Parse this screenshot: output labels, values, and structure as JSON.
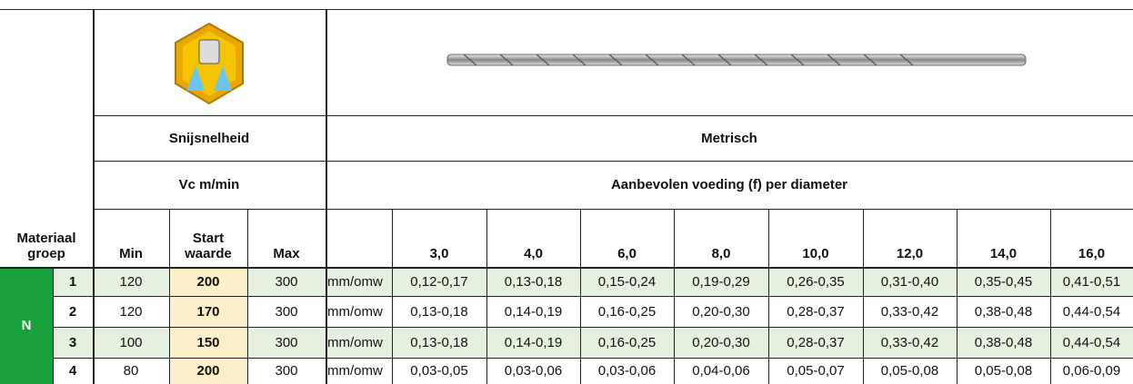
{
  "header": {
    "speed_title": "Snijsnelheid",
    "speed_unit": "Vc m/min",
    "metric": "Metrisch",
    "feed": "Aanbevolen voeding (f) per diameter"
  },
  "columns": {
    "material": "Materiaal groep",
    "min": "Min",
    "start": "Start waarde",
    "max": "Max",
    "diameters": [
      "3,0",
      "4,0",
      "6,0",
      "8,0",
      "10,0",
      "12,0",
      "14,0",
      "16,0"
    ]
  },
  "group": "N",
  "rows": [
    {
      "no": "1",
      "min": "120",
      "start": "200",
      "max": "300",
      "unit": "mm/omw",
      "feeds": [
        "0,12-0,17",
        "0,13-0,18",
        "0,15-0,24",
        "0,19-0,29",
        "0,26-0,35",
        "0,31-0,40",
        "0,35-0,45",
        "0,41-0,51"
      ]
    },
    {
      "no": "2",
      "min": "120",
      "start": "170",
      "max": "300",
      "unit": "mm/omw",
      "feeds": [
        "0,13-0,18",
        "0,14-0,19",
        "0,16-0,25",
        "0,20-0,30",
        "0,28-0,37",
        "0,33-0,42",
        "0,38-0,48",
        "0,44-0,54"
      ]
    },
    {
      "no": "3",
      "min": "100",
      "start": "150",
      "max": "300",
      "unit": "mm/omw",
      "feeds": [
        "0,13-0,18",
        "0,14-0,19",
        "0,16-0,25",
        "0,20-0,30",
        "0,28-0,37",
        "0,33-0,42",
        "0,38-0,48",
        "0,44-0,54"
      ]
    },
    {
      "no": "4",
      "min": "80",
      "start": "200",
      "max": "300",
      "unit": "mm/omw",
      "feeds": [
        "0,03-0,05",
        "0,03-0,06",
        "0,03-0,06",
        "0,04-0,06",
        "0,05-0,07",
        "0,05-0,08",
        "0,05-0,08",
        "0,06-0,09"
      ]
    }
  ]
}
